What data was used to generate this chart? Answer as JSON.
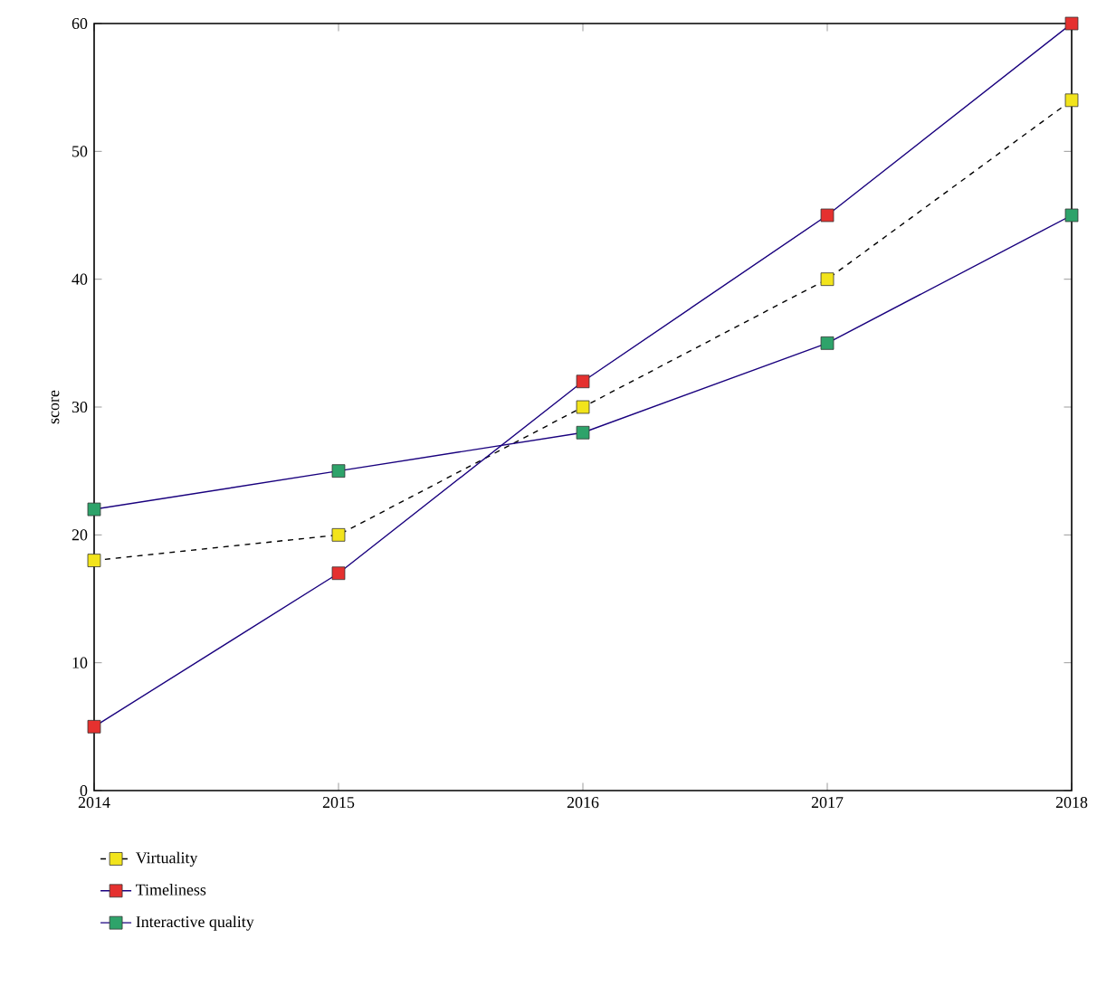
{
  "chart_data": {
    "type": "line",
    "ylabel": "score",
    "x": [
      2014,
      2015,
      2016,
      2017,
      2018
    ],
    "series": [
      {
        "name": "Virtuality",
        "color": "#f2e41c",
        "line_style": "dashed",
        "values": [
          18,
          20,
          30,
          40,
          54
        ]
      },
      {
        "name": "Timeliness",
        "color": "#e5312f",
        "line_style": "solid",
        "values": [
          5,
          17,
          32,
          45,
          60
        ]
      },
      {
        "name": "Interactive quality",
        "color": "#2ea36a",
        "line_style": "solid",
        "values": [
          22,
          25,
          28,
          35,
          45
        ]
      }
    ],
    "xlim": [
      2014,
      2018
    ],
    "xticks": [
      2014,
      2015,
      2016,
      2017,
      2018
    ],
    "ylim": [
      0,
      60
    ],
    "yticks": [
      0,
      10,
      20,
      30,
      40,
      50,
      60
    ],
    "marker": "square",
    "legend": "bottom",
    "grid": false
  }
}
